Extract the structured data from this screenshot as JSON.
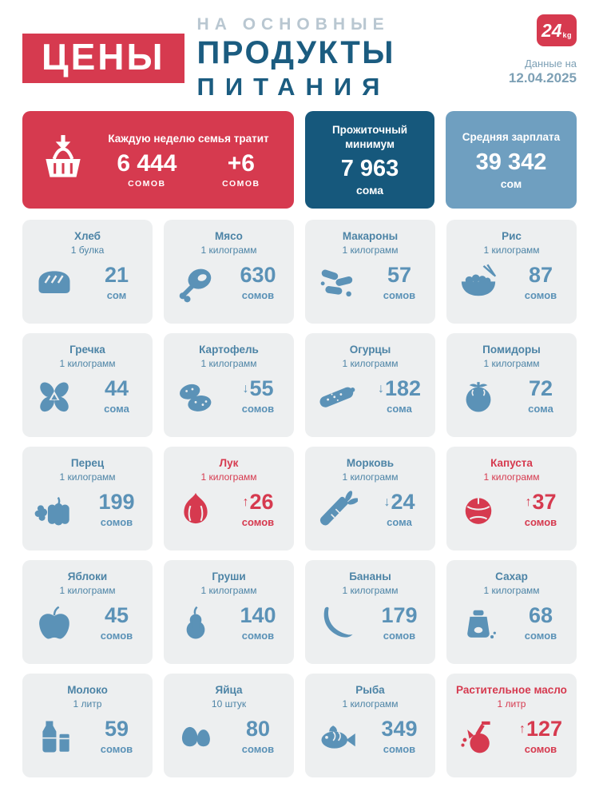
{
  "header": {
    "title": "ЦЕНЫ",
    "subtitle_line1": "НА ОСНОВНЫЕ",
    "subtitle_line2": "ПРОДУКТЫ",
    "subtitle_line3": "ПИТАНИЯ",
    "logo_number": "24",
    "logo_suffix": "kg",
    "date_label": "Данные на",
    "date_value": "12.04.2025"
  },
  "summary": {
    "weekly": {
      "icon": "basket-icon",
      "label": "Каждую неделю семья тратит",
      "amount": "6 444",
      "amount_unit": "СОМОВ",
      "delta": "+6",
      "delta_unit": "СОМОВ"
    },
    "minimum": {
      "label": "Прожиточный минимум",
      "amount": "7 963",
      "unit": "сома"
    },
    "salary": {
      "label": "Средняя зарплата",
      "amount": "39 342",
      "unit": "сом"
    }
  },
  "products": [
    {
      "name": "Хлеб",
      "qty": "1 булка",
      "icon": "bread-icon",
      "price": "21",
      "unit": "сом",
      "trend": null,
      "highlight": false
    },
    {
      "name": "Мясо",
      "qty": "1 килограмм",
      "icon": "meat-icon",
      "price": "630",
      "unit": "сомов",
      "trend": null,
      "highlight": false
    },
    {
      "name": "Макароны",
      "qty": "1 килограмм",
      "icon": "pasta-icon",
      "price": "57",
      "unit": "сомов",
      "trend": null,
      "highlight": false
    },
    {
      "name": "Рис",
      "qty": "1 килограмм",
      "icon": "rice-icon",
      "price": "87",
      "unit": "сомов",
      "trend": null,
      "highlight": false
    },
    {
      "name": "Гречка",
      "qty": "1 килограмм",
      "icon": "buckwheat-icon",
      "price": "44",
      "unit": "сома",
      "trend": null,
      "highlight": false
    },
    {
      "name": "Картофель",
      "qty": "1 килограмм",
      "icon": "potato-icon",
      "price": "55",
      "unit": "сомов",
      "trend": "down",
      "highlight": false
    },
    {
      "name": "Огурцы",
      "qty": "1 килограмм",
      "icon": "cucumber-icon",
      "price": "182",
      "unit": "сома",
      "trend": "down",
      "highlight": false
    },
    {
      "name": "Помидоры",
      "qty": "1 килограмм",
      "icon": "tomato-icon",
      "price": "72",
      "unit": "сома",
      "trend": null,
      "highlight": false
    },
    {
      "name": "Перец",
      "qty": "1 килограмм",
      "icon": "pepper-icon",
      "price": "199",
      "unit": "сомов",
      "trend": null,
      "highlight": false
    },
    {
      "name": "Лук",
      "qty": "1 килограмм",
      "icon": "onion-icon",
      "price": "26",
      "unit": "сомов",
      "trend": "up",
      "highlight": true
    },
    {
      "name": "Морковь",
      "qty": "1 килограмм",
      "icon": "carrot-icon",
      "price": "24",
      "unit": "сома",
      "trend": "down",
      "highlight": false
    },
    {
      "name": "Капуста",
      "qty": "1 килограмм",
      "icon": "cabbage-icon",
      "price": "37",
      "unit": "сомов",
      "trend": "up",
      "highlight": true
    },
    {
      "name": "Яблоки",
      "qty": "1 килограмм",
      "icon": "apple-icon",
      "price": "45",
      "unit": "сомов",
      "trend": null,
      "highlight": false
    },
    {
      "name": "Груши",
      "qty": "1 килограмм",
      "icon": "pear-icon",
      "price": "140",
      "unit": "сомов",
      "trend": null,
      "highlight": false
    },
    {
      "name": "Бананы",
      "qty": "1 килограмм",
      "icon": "banana-icon",
      "price": "179",
      "unit": "сомов",
      "trend": null,
      "highlight": false
    },
    {
      "name": "Сахар",
      "qty": "1 килограмм",
      "icon": "sugar-icon",
      "price": "68",
      "unit": "сомов",
      "trend": null,
      "highlight": false
    },
    {
      "name": "Молоко",
      "qty": "1 литр",
      "icon": "milk-icon",
      "price": "59",
      "unit": "сомов",
      "trend": null,
      "highlight": false
    },
    {
      "name": "Яйца",
      "qty": "10 штук",
      "icon": "eggs-icon",
      "price": "80",
      "unit": "сомов",
      "trend": null,
      "highlight": false
    },
    {
      "name": "Рыба",
      "qty": "1 килограмм",
      "icon": "fish-icon",
      "price": "349",
      "unit": "сомов",
      "trend": null,
      "highlight": false
    },
    {
      "name": "Растительное масло",
      "qty": "1 литр",
      "icon": "oil-icon",
      "price": "127",
      "unit": "сомов",
      "trend": "up",
      "highlight": true
    }
  ],
  "trend_glyphs": {
    "up": "↑",
    "down": "↓"
  },
  "colors": {
    "brand_red": "#d63a4f",
    "dark_blue": "#16587c",
    "steel_blue": "#6f9fc0",
    "heading_blue": "#1b5c80",
    "item_blue": "#5b92b7",
    "name_blue": "#4d84a6",
    "muted_blue": "#b9c7d1",
    "card_bg": "#edeff0"
  }
}
